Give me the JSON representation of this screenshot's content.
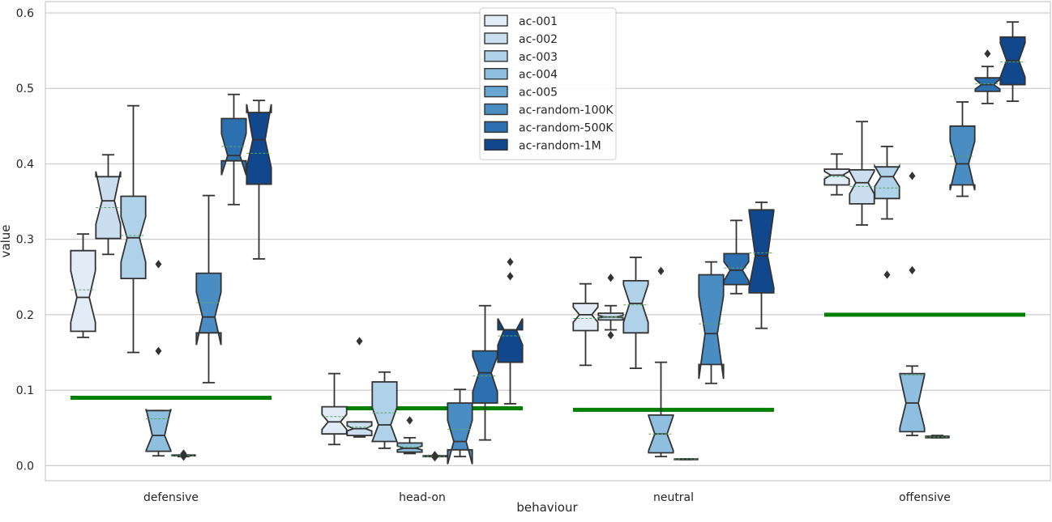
{
  "chart_data": {
    "type": "boxplot",
    "notched": true,
    "show_means": true,
    "xlabel": "behaviour",
    "ylabel": "value",
    "ylim": [
      -0.02,
      0.615
    ],
    "yticks": [
      0.0,
      0.1,
      0.2,
      0.3,
      0.4,
      0.5,
      0.6
    ],
    "ytick_labels": [
      "0.0",
      "0.1",
      "0.2",
      "0.3",
      "0.4",
      "0.5",
      "0.6"
    ],
    "grid": "horizontal",
    "legend_placement": "upper-center",
    "categories": [
      "defensive",
      "head-on",
      "neutral",
      "offensive"
    ],
    "series": [
      {
        "name": "ac-001",
        "color": "#e1ecf7",
        "boxes": [
          {
            "whisker_low": 0.17,
            "q1": 0.178,
            "median": 0.223,
            "q3": 0.285,
            "whisker_high": 0.307,
            "mean": 0.233,
            "notch_low": 0.19,
            "notch_high": 0.258,
            "outliers": []
          },
          {
            "whisker_low": 0.028,
            "q1": 0.042,
            "median": 0.058,
            "q3": 0.078,
            "whisker_high": 0.122,
            "mean": 0.065,
            "notch_low": 0.048,
            "notch_high": 0.068,
            "outliers": []
          },
          {
            "whisker_low": 0.133,
            "q1": 0.179,
            "median": 0.2,
            "q3": 0.215,
            "whisker_high": 0.241,
            "mean": 0.195,
            "notch_low": 0.19,
            "notch_high": 0.21,
            "outliers": []
          },
          {
            "whisker_low": 0.359,
            "q1": 0.372,
            "median": 0.385,
            "q3": 0.393,
            "whisker_high": 0.413,
            "mean": 0.383,
            "notch_low": 0.38,
            "notch_high": 0.39,
            "outliers": []
          }
        ]
      },
      {
        "name": "ac-002",
        "color": "#cadeef",
        "boxes": [
          {
            "whisker_low": 0.28,
            "q1": 0.301,
            "median": 0.351,
            "q3": 0.383,
            "whisker_high": 0.412,
            "mean": 0.342,
            "notch_low": 0.32,
            "notch_high": 0.39,
            "outliers": []
          },
          {
            "whisker_low": 0.038,
            "q1": 0.04,
            "median": 0.049,
            "q3": 0.058,
            "whisker_high": 0.058,
            "mean": 0.051,
            "notch_low": 0.046,
            "notch_high": 0.053,
            "outliers": [
              0.165
            ]
          },
          {
            "whisker_low": 0.18,
            "q1": 0.193,
            "median": 0.197,
            "q3": 0.202,
            "whisker_high": 0.212,
            "mean": 0.197,
            "notch_low": 0.196,
            "notch_high": 0.199,
            "outliers": [
              0.173,
              0.249
            ]
          },
          {
            "whisker_low": 0.319,
            "q1": 0.347,
            "median": 0.375,
            "q3": 0.392,
            "whisker_high": 0.456,
            "mean": 0.37,
            "notch_low": 0.36,
            "notch_high": 0.39,
            "outliers": []
          }
        ]
      },
      {
        "name": "ac-003",
        "color": "#b0d2e8",
        "boxes": [
          {
            "whisker_low": 0.15,
            "q1": 0.248,
            "median": 0.302,
            "q3": 0.357,
            "whisker_high": 0.477,
            "mean": 0.305,
            "notch_low": 0.27,
            "notch_high": 0.33,
            "outliers": []
          },
          {
            "whisker_low": 0.023,
            "q1": 0.032,
            "median": 0.054,
            "q3": 0.111,
            "whisker_high": 0.124,
            "mean": 0.07,
            "notch_low": 0.032,
            "notch_high": 0.077,
            "outliers": []
          },
          {
            "whisker_low": 0.129,
            "q1": 0.176,
            "median": 0.215,
            "q3": 0.245,
            "whisker_high": 0.276,
            "mean": 0.213,
            "notch_low": 0.19,
            "notch_high": 0.24,
            "outliers": []
          },
          {
            "whisker_low": 0.327,
            "q1": 0.354,
            "median": 0.383,
            "q3": 0.396,
            "whisker_high": 0.423,
            "mean": 0.368,
            "notch_low": 0.37,
            "notch_high": 0.397,
            "outliers": [
              0.253
            ]
          }
        ]
      },
      {
        "name": "ac-004",
        "color": "#8fbfdf",
        "boxes": [
          {
            "whisker_low": 0.013,
            "q1": 0.019,
            "median": 0.04,
            "q3": 0.073,
            "whisker_high": 0.073,
            "mean": 0.062,
            "notch_low": 0.02,
            "notch_high": 0.075,
            "outliers": [
              0.152,
              0.267
            ]
          },
          {
            "whisker_low": 0.016,
            "q1": 0.018,
            "median": 0.023,
            "q3": 0.03,
            "whisker_high": 0.037,
            "mean": 0.025,
            "notch_low": 0.021,
            "notch_high": 0.026,
            "outliers": [
              0.06
            ]
          },
          {
            "whisker_low": 0.012,
            "q1": 0.017,
            "median": 0.042,
            "q3": 0.067,
            "whisker_high": 0.137,
            "mean": 0.042,
            "notch_low": 0.02,
            "notch_high": 0.066,
            "outliers": [
              0.258
            ]
          },
          {
            "whisker_low": 0.04,
            "q1": 0.045,
            "median": 0.083,
            "q3": 0.122,
            "whisker_high": 0.132,
            "mean": 0.12,
            "notch_low": 0.05,
            "notch_high": 0.12,
            "outliers": [
              0.384,
              0.259
            ]
          }
        ]
      },
      {
        "name": "ac-005",
        "color": "#68a5d2",
        "boxes": [
          {
            "whisker_low": 0.012,
            "q1": 0.013,
            "median": 0.013,
            "q3": 0.014,
            "whisker_high": 0.014,
            "mean": 0.013,
            "notch_low": 0.013,
            "notch_high": 0.014,
            "outliers": [
              0.012,
              0.016
            ]
          },
          {
            "whisker_low": 0.012,
            "q1": 0.012,
            "median": 0.012,
            "q3": 0.013,
            "whisker_high": 0.013,
            "mean": 0.012,
            "notch_low": 0.012,
            "notch_high": 0.013,
            "outliers": [
              0.011,
              0.014
            ]
          },
          {
            "whisker_low": 0.008,
            "q1": 0.008,
            "median": 0.009,
            "q3": 0.009,
            "whisker_high": 0.009,
            "mean": 0.009,
            "notch_low": 0.008,
            "notch_high": 0.009,
            "outliers": []
          },
          {
            "whisker_low": 0.037,
            "q1": 0.037,
            "median": 0.038,
            "q3": 0.039,
            "whisker_high": 0.04,
            "mean": 0.038,
            "notch_low": 0.037,
            "notch_high": 0.039,
            "outliers": []
          }
        ]
      },
      {
        "name": "ac-random-100K",
        "color": "#4a8dc3",
        "boxes": [
          {
            "whisker_low": 0.11,
            "q1": 0.176,
            "median": 0.197,
            "q3": 0.255,
            "whisker_high": 0.358,
            "mean": 0.216,
            "notch_low": 0.16,
            "notch_high": 0.23,
            "outliers": []
          },
          {
            "whisker_low": 0.012,
            "q1": 0.021,
            "median": 0.032,
            "q3": 0.083,
            "whisker_high": 0.101,
            "mean": 0.048,
            "notch_low": 0.002,
            "notch_high": 0.06,
            "outliers": []
          },
          {
            "whisker_low": 0.109,
            "q1": 0.134,
            "median": 0.175,
            "q3": 0.253,
            "whisker_high": 0.27,
            "mean": 0.188,
            "notch_low": 0.115,
            "notch_high": 0.225,
            "outliers": []
          },
          {
            "whisker_low": 0.357,
            "q1": 0.372,
            "median": 0.4,
            "q3": 0.45,
            "whisker_high": 0.482,
            "mean": 0.41,
            "notch_low": 0.365,
            "notch_high": 0.43,
            "outliers": []
          }
        ]
      },
      {
        "name": "ac-random-500K",
        "color": "#2c70b0",
        "boxes": [
          {
            "whisker_low": 0.346,
            "q1": 0.404,
            "median": 0.411,
            "q3": 0.46,
            "whisker_high": 0.492,
            "mean": 0.423,
            "notch_low": 0.385,
            "notch_high": 0.44,
            "outliers": []
          },
          {
            "whisker_low": 0.034,
            "q1": 0.083,
            "median": 0.123,
            "q3": 0.152,
            "whisker_high": 0.212,
            "mean": 0.119,
            "notch_low": 0.098,
            "notch_high": 0.145,
            "outliers": []
          },
          {
            "whisker_low": 0.228,
            "q1": 0.24,
            "median": 0.259,
            "q3": 0.281,
            "whisker_high": 0.325,
            "mean": 0.262,
            "notch_low": 0.245,
            "notch_high": 0.27,
            "outliers": []
          },
          {
            "whisker_low": 0.48,
            "q1": 0.496,
            "median": 0.505,
            "q3": 0.514,
            "whisker_high": 0.529,
            "mean": 0.506,
            "notch_low": 0.499,
            "notch_high": 0.512,
            "outliers": [
              0.546
            ]
          }
        ]
      },
      {
        "name": "ac-random-1M",
        "color": "#11478c",
        "boxes": [
          {
            "whisker_low": 0.274,
            "q1": 0.373,
            "median": 0.432,
            "q3": 0.468,
            "whisker_high": 0.484,
            "mean": 0.414,
            "notch_low": 0.395,
            "notch_high": 0.479,
            "outliers": []
          },
          {
            "whisker_low": 0.082,
            "q1": 0.137,
            "median": 0.18,
            "q3": 0.18,
            "whisker_high": 0.18,
            "mean": 0.172,
            "notch_low": 0.16,
            "notch_high": 0.195,
            "outliers": [
              0.251,
              0.27
            ]
          },
          {
            "whisker_low": 0.182,
            "q1": 0.229,
            "median": 0.278,
            "q3": 0.339,
            "whisker_high": 0.349,
            "mean": 0.282,
            "notch_low": 0.236,
            "notch_high": 0.337,
            "outliers": []
          },
          {
            "whisker_low": 0.483,
            "q1": 0.505,
            "median": 0.537,
            "q3": 0.568,
            "whisker_high": 0.588,
            "mean": 0.535,
            "notch_low": 0.515,
            "notch_high": 0.56,
            "outliers": []
          }
        ]
      }
    ],
    "reference_lines": [
      {
        "category": "defensive",
        "value": 0.09,
        "color": "#008000"
      },
      {
        "category": "head-on",
        "value": 0.076,
        "color": "#008000"
      },
      {
        "category": "neutral",
        "value": 0.074,
        "color": "#008000"
      },
      {
        "category": "offensive",
        "value": 0.2,
        "color": "#008000"
      }
    ],
    "mean_line_color": "#55a868",
    "box_edge_color": "#333333",
    "grid_color": "#cccccc",
    "background_color": "#ffffff"
  }
}
